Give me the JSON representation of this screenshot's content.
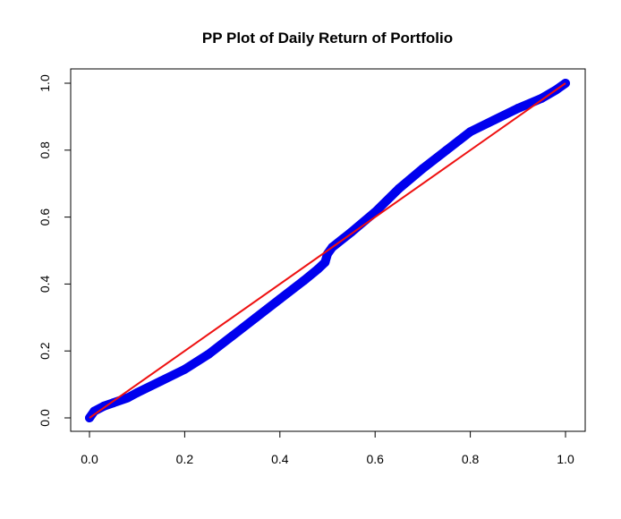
{
  "chart_data": {
    "type": "scatter",
    "title": "PP Plot of Daily Return of Portfolio",
    "xlabel": "",
    "ylabel": "",
    "xlim": [
      0.0,
      1.0
    ],
    "ylim": [
      0.0,
      1.0
    ],
    "x_ticks": [
      "0.0",
      "0.2",
      "0.4",
      "0.6",
      "0.8",
      "1.0"
    ],
    "y_ticks": [
      "0.0",
      "0.2",
      "0.4",
      "0.6",
      "0.8",
      "1.0"
    ],
    "grid": false,
    "legend": "none",
    "series": [
      {
        "kind": "points",
        "color": "#0000ee",
        "points": [
          [
            0.0,
            0.0
          ],
          [
            0.01,
            0.02
          ],
          [
            0.03,
            0.035
          ],
          [
            0.05,
            0.045
          ],
          [
            0.08,
            0.06
          ],
          [
            0.1,
            0.075
          ],
          [
            0.15,
            0.11
          ],
          [
            0.2,
            0.145
          ],
          [
            0.25,
            0.19
          ],
          [
            0.3,
            0.245
          ],
          [
            0.35,
            0.3
          ],
          [
            0.4,
            0.355
          ],
          [
            0.45,
            0.41
          ],
          [
            0.48,
            0.445
          ],
          [
            0.495,
            0.465
          ],
          [
            0.5,
            0.49
          ],
          [
            0.51,
            0.51
          ],
          [
            0.55,
            0.555
          ],
          [
            0.6,
            0.615
          ],
          [
            0.65,
            0.685
          ],
          [
            0.7,
            0.745
          ],
          [
            0.75,
            0.8
          ],
          [
            0.8,
            0.855
          ],
          [
            0.85,
            0.89
          ],
          [
            0.9,
            0.925
          ],
          [
            0.95,
            0.955
          ],
          [
            0.98,
            0.98
          ],
          [
            1.0,
            1.0
          ]
        ]
      },
      {
        "kind": "line",
        "color": "#ee1111",
        "points": [
          [
            0.0,
            0.0
          ],
          [
            1.0,
            1.0
          ]
        ]
      }
    ]
  }
}
